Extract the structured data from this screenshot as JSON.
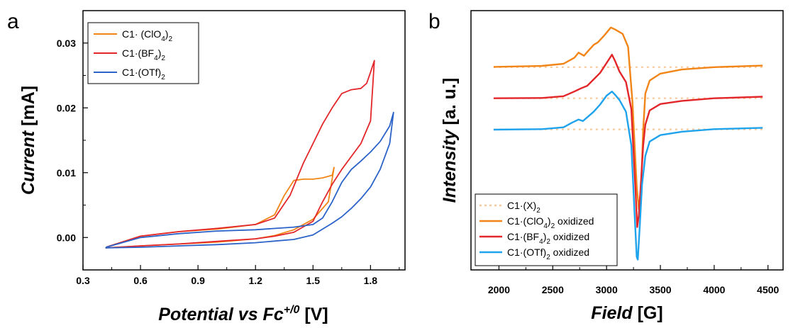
{
  "figure": {
    "panel_a_label": "a",
    "panel_b_label": "b"
  },
  "chart_data": [
    {
      "type": "line",
      "panel": "a",
      "xlabel": {
        "main": "Potential vs Fc",
        "sup": "+/0",
        "unit": " [V]"
      },
      "ylabel": {
        "main": "Current",
        "unit": " [mA]"
      },
      "xlim": [
        0.3,
        1.98
      ],
      "ylim": [
        -0.005,
        0.035
      ],
      "xticks": [
        0.3,
        0.6,
        0.9,
        1.2,
        1.5,
        1.8
      ],
      "yticks": [
        0.0,
        0.01,
        0.02,
        0.03
      ],
      "xtick_labels": [
        "0.3",
        "0.6",
        "0.9",
        "1.2",
        "1.5",
        "1.8"
      ],
      "ytick_labels": [
        "0.00",
        "0.01",
        "0.02",
        "0.03"
      ],
      "legend_position": "top-left",
      "series": [
        {
          "name": "C1· (ClO4)2",
          "legend": {
            "base": "C1· (ClO",
            "sub": "4",
            "rest": ")",
            "sub2": "2"
          },
          "color": "#f28518",
          "x": [
            0.42,
            0.6,
            0.8,
            1.0,
            1.2,
            1.3,
            1.35,
            1.4,
            1.45,
            1.5,
            1.55,
            1.6,
            1.61,
            1.58,
            1.5,
            1.4,
            1.3,
            1.2,
            1.0,
            0.8,
            0.6,
            0.42,
            0.42
          ],
          "y": [
            -0.0015,
            0.0002,
            0.0009,
            0.0013,
            0.002,
            0.0035,
            0.0065,
            0.0088,
            0.009,
            0.009,
            0.0092,
            0.0096,
            0.0108,
            0.0055,
            0.0028,
            0.0012,
            0.0003,
            -0.0002,
            -0.0007,
            -0.001,
            -0.0013,
            -0.0016,
            -0.0015
          ]
        },
        {
          "name": "C1·(BF4)2",
          "legend": {
            "base": "C1·(BF",
            "sub": "4",
            "rest": ")",
            "sub2": "2"
          },
          "color": "#e3262a",
          "x": [
            0.42,
            0.6,
            0.8,
            1.0,
            1.2,
            1.3,
            1.38,
            1.45,
            1.5,
            1.55,
            1.6,
            1.65,
            1.7,
            1.75,
            1.78,
            1.8,
            1.82,
            1.8,
            1.75,
            1.7,
            1.65,
            1.6,
            1.55,
            1.5,
            1.4,
            1.3,
            1.2,
            1.0,
            0.8,
            0.6,
            0.42,
            0.42
          ],
          "y": [
            -0.0015,
            0.0002,
            0.0009,
            0.0014,
            0.002,
            0.003,
            0.0065,
            0.0115,
            0.0145,
            0.0175,
            0.02,
            0.0222,
            0.0228,
            0.023,
            0.0238,
            0.0255,
            0.0273,
            0.018,
            0.0145,
            0.0125,
            0.0105,
            0.0082,
            0.0055,
            0.0025,
            0.0008,
            0.0002,
            -0.0002,
            -0.0006,
            -0.001,
            -0.0013,
            -0.0016,
            -0.0015
          ]
        },
        {
          "name": "C1·(OTf)2",
          "legend": {
            "base": "C1·(OTf)",
            "sub": "",
            "rest": "",
            "sub2": "2"
          },
          "color": "#2b63c8",
          "x": [
            0.42,
            0.6,
            0.8,
            1.0,
            1.2,
            1.4,
            1.5,
            1.55,
            1.6,
            1.65,
            1.7,
            1.75,
            1.8,
            1.85,
            1.9,
            1.92,
            1.9,
            1.85,
            1.8,
            1.75,
            1.7,
            1.65,
            1.6,
            1.5,
            1.4,
            1.2,
            1.0,
            0.8,
            0.6,
            0.42,
            0.42
          ],
          "y": [
            -0.0015,
            0.0,
            0.0006,
            0.001,
            0.0012,
            0.0016,
            0.002,
            0.003,
            0.0055,
            0.0085,
            0.0105,
            0.0118,
            0.0132,
            0.0148,
            0.0172,
            0.0193,
            0.0145,
            0.0105,
            0.0078,
            0.006,
            0.0045,
            0.0032,
            0.0022,
            0.0004,
            -0.0003,
            -0.0008,
            -0.0011,
            -0.0013,
            -0.0015,
            -0.0016,
            -0.0015
          ]
        }
      ]
    },
    {
      "type": "line",
      "panel": "b",
      "xlabel": {
        "main": "Field",
        "unit": " [G]"
      },
      "ylabel": {
        "main": "Intensity",
        "unit": " [a. u.]"
      },
      "xlim": [
        1740,
        4640
      ],
      "ylim": [
        0,
        1
      ],
      "xticks": [
        2000,
        2500,
        3000,
        3500,
        4000,
        4500
      ],
      "xtick_labels": [
        "2000",
        "2500",
        "3000",
        "3500",
        "4000",
        "4500"
      ],
      "legend_position": "bottom-left",
      "legend_entries": [
        {
          "base": "C1·(X)",
          "sub": "",
          "rest": "",
          "sub2": "2",
          "tail": "",
          "color": "#f8c99a",
          "dashed": true
        },
        {
          "base": "C1·(ClO",
          "sub": "4",
          "rest": ")",
          "sub2": "2",
          "tail": " oxidized",
          "color": "#f28518",
          "dashed": false
        },
        {
          "base": "C1·(BF",
          "sub": "4",
          "rest": ")",
          "sub2": "2",
          "tail": " oxidized",
          "color": "#e3262a",
          "dashed": false
        },
        {
          "base": "C1·(OTf)",
          "sub": "",
          "rest": "",
          "sub2": "2",
          "tail": " oxidized",
          "color": "#1fa3ec",
          "dashed": false
        }
      ],
      "baselines": {
        "name": "C1·(X)2",
        "color": "#f8c99a",
        "y": [
          0.782,
          0.662,
          0.542
        ]
      },
      "series": [
        {
          "name": "C1·(ClO4)2 oxidized",
          "color": "#f28518",
          "x": [
            1950,
            2400,
            2600,
            2700,
            2740,
            2790,
            2830,
            2880,
            2920,
            2980,
            3040,
            3080,
            3150,
            3200,
            3240,
            3280,
            3300,
            3320,
            3340,
            3360,
            3400,
            3500,
            3700,
            4000,
            4450
          ],
          "y": [
            0.783,
            0.787,
            0.795,
            0.818,
            0.838,
            0.826,
            0.845,
            0.868,
            0.878,
            0.905,
            0.935,
            0.927,
            0.91,
            0.86,
            0.65,
            0.32,
            0.235,
            0.31,
            0.54,
            0.68,
            0.73,
            0.757,
            0.773,
            0.782,
            0.788
          ]
        },
        {
          "name": "C1·(BF4)2 oxidized",
          "color": "#e3262a",
          "x": [
            1950,
            2400,
            2600,
            2700,
            2760,
            2820,
            2880,
            2940,
            3000,
            3050,
            3080,
            3120,
            3180,
            3230,
            3270,
            3285,
            3300,
            3320,
            3340,
            3360,
            3400,
            3500,
            3700,
            4000,
            4450
          ],
          "y": [
            0.662,
            0.663,
            0.67,
            0.688,
            0.7,
            0.71,
            0.735,
            0.76,
            0.798,
            0.83,
            0.805,
            0.765,
            0.725,
            0.62,
            0.3,
            0.165,
            0.21,
            0.34,
            0.48,
            0.56,
            0.615,
            0.64,
            0.652,
            0.662,
            0.668
          ]
        },
        {
          "name": "C1·(OTf)2 oxidized",
          "color": "#1fa3ec",
          "x": [
            1950,
            2400,
            2600,
            2680,
            2740,
            2780,
            2830,
            2880,
            2940,
            3000,
            3050,
            3080,
            3120,
            3180,
            3230,
            3260,
            3280,
            3290,
            3310,
            3330,
            3360,
            3400,
            3500,
            3700,
            4000,
            4450
          ],
          "y": [
            0.541,
            0.543,
            0.55,
            0.568,
            0.58,
            0.574,
            0.592,
            0.61,
            0.638,
            0.672,
            0.688,
            0.675,
            0.655,
            0.61,
            0.48,
            0.22,
            0.05,
            0.04,
            0.18,
            0.33,
            0.44,
            0.495,
            0.52,
            0.533,
            0.543,
            0.548
          ]
        }
      ]
    }
  ]
}
